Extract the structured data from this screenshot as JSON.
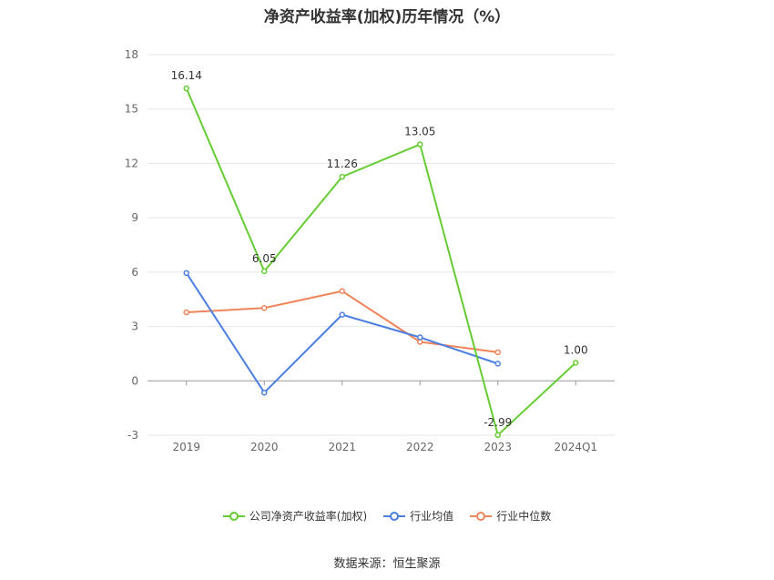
{
  "title": "净资产收益率(加权)历年情况（%）",
  "source": "数据来源：恒生聚源",
  "chart_data": {
    "type": "line",
    "categories": [
      "2019",
      "2020",
      "2021",
      "2022",
      "2023",
      "2024Q1"
    ],
    "yticks": [
      -3,
      0,
      3,
      6,
      9,
      12,
      15,
      18
    ],
    "ylim": [
      -3,
      18
    ],
    "grid": true,
    "legend_position": "bottom",
    "series": [
      {
        "name": "公司净资产收益率(加权)",
        "color": "#66cc33",
        "values": [
          16.14,
          6.05,
          11.26,
          13.05,
          -2.99,
          1.0
        ],
        "labels": [
          "16.14",
          "6.05",
          "11.26",
          "13.05",
          "-2.99",
          "1.00"
        ]
      },
      {
        "name": "行业均值",
        "color": "#4a7fe0",
        "values": [
          5.95,
          -0.65,
          3.65,
          2.4,
          0.95,
          null
        ]
      },
      {
        "name": "行业中位数",
        "color": "#f0845a",
        "values": [
          3.78,
          4.02,
          4.95,
          2.15,
          1.58,
          null
        ]
      }
    ]
  }
}
